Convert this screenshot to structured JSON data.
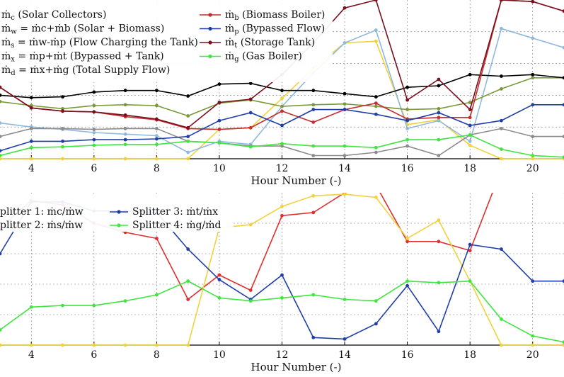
{
  "chart_data": [
    {
      "type": "line",
      "title": "",
      "xlabel": "Hour Number (-)",
      "ylabel": "",
      "xlim": [
        3,
        21
      ],
      "ylim": [
        0,
        1
      ],
      "grid": true,
      "legend_position": "top-left",
      "xticks": [
        4,
        6,
        8,
        10,
        12,
        14,
        16,
        18,
        20
      ],
      "x": [
        3,
        4,
        5,
        6,
        7,
        8,
        9,
        10,
        11,
        12,
        13,
        14,
        15,
        16,
        17,
        18,
        19,
        20,
        21
      ],
      "series": [
        {
          "name": "ṁc (Solar Collectors)",
          "color": "#f2d23c",
          "values": [
            0,
            0,
            0,
            0,
            0,
            0,
            0,
            0.185,
            0.195,
            0.38,
            0.57,
            0.73,
            0.74,
            0.215,
            0.245,
            0.085,
            0,
            0,
            0
          ]
        },
        {
          "name": "ṁw = ṁc+ṁb (Solar + Biomass)",
          "color": "#8fb9e0",
          "values": [
            0.225,
            0.2,
            0.185,
            0.165,
            0.155,
            0.145,
            0.04,
            0.11,
            0.09,
            0.33,
            0.54,
            0.73,
            0.81,
            0.19,
            0.24,
            0.11,
            0.82,
            0.76,
            0.7
          ]
        },
        {
          "name": "ṁs = ṁw-ṁp (Flow Charging the Tank)",
          "color": "#7a9a3a",
          "values": [
            0.36,
            0.335,
            0.315,
            0.335,
            0.34,
            0.335,
            0.27,
            0.35,
            0.37,
            0.33,
            0.34,
            0.345,
            0.33,
            0.31,
            0.315,
            0.355,
            0.44,
            0.51,
            0.51
          ]
        },
        {
          "name": "ṁx = ṁp+ṁt (Bypassed + Tank)",
          "color": "#000000",
          "values": [
            0.4,
            0.385,
            0.39,
            0.42,
            0.43,
            0.43,
            0.395,
            0.47,
            0.475,
            0.43,
            0.43,
            0.41,
            0.39,
            0.45,
            0.46,
            0.53,
            0.52,
            0.53,
            0.51
          ]
        },
        {
          "name": "ṁd = ṁx+ṁg (Total Supply Flow)",
          "color": "#8b8b8b",
          "values": [
            0.14,
            0.19,
            0.19,
            0.185,
            0.19,
            0.19,
            0.11,
            0.1,
            0.08,
            0.08,
            0.02,
            0.02,
            0.04,
            0.08,
            0.02,
            0.15,
            0.19,
            0.14,
            0.14
          ]
        },
        {
          "name": "ṁb (Biomass Boiler)",
          "color": "#c62d2d",
          "values": [
            0.45,
            0.32,
            0.3,
            0.295,
            0.265,
            0.245,
            0.19,
            0.185,
            0.195,
            0.3,
            0.23,
            0.31,
            0.35,
            0.25,
            0.26,
            0.26,
            1.0,
            0.99,
            0.93
          ]
        },
        {
          "name": "ṁp (Bypassed Flow)",
          "color": "#1f3fa8",
          "values": [
            0.05,
            0.11,
            0.11,
            0.12,
            0.12,
            0.125,
            0.14,
            0.24,
            0.29,
            0.21,
            0.31,
            0.31,
            0.28,
            0.24,
            0.29,
            0.21,
            0.24,
            0.34,
            0.34
          ]
        },
        {
          "name": "ṁt (Storage Tank)",
          "color": "#7a0f1e",
          "values": [
            0.45,
            0.32,
            0.3,
            0.295,
            0.275,
            0.25,
            0.195,
            0.355,
            0.375,
            0.53,
            0.73,
            0.95,
            1.0,
            0.37,
            0.5,
            0.31,
            1.0,
            0.99,
            0.93
          ]
        },
        {
          "name": "ṁg (Gas Boiler)",
          "color": "#3ee63e",
          "values": [
            0.02,
            0.07,
            0.075,
            0.085,
            0.09,
            0.09,
            0.11,
            0.1,
            0.075,
            0.095,
            0.08,
            0.08,
            0.07,
            0.12,
            0.12,
            0.15,
            0.06,
            0.02,
            0.01
          ]
        }
      ]
    },
    {
      "type": "line",
      "title": "",
      "xlabel": "Hour Number (-)",
      "ylabel": "",
      "xlim": [
        3,
        21
      ],
      "ylim": [
        0,
        1
      ],
      "grid": true,
      "legend_position": "top-left",
      "xticks": [
        4,
        6,
        8,
        10,
        12,
        14,
        16,
        18,
        20
      ],
      "x": [
        3,
        4,
        5,
        6,
        7,
        8,
        9,
        10,
        11,
        12,
        13,
        14,
        15,
        16,
        17,
        18,
        19,
        20,
        21
      ],
      "series": [
        {
          "name": "Splitter 1: ṁc/ṁw",
          "color": "#e03030",
          "values": [
            0.77,
            0.95,
            0.92,
            0.8,
            0.74,
            0.7,
            0.3,
            0.46,
            0.36,
            0.85,
            0.87,
            1.0,
            1.05,
            0.68,
            0.68,
            0.62,
            1.15,
            1.03,
            1.01
          ]
        },
        {
          "name": "Splitter 2: ṁs/ṁw",
          "color": "#f2d23c",
          "values": [
            0,
            0,
            0,
            0,
            0,
            0,
            0,
            0.77,
            0.79,
            0.91,
            0.98,
            0.99,
            0.97,
            0.7,
            0.82,
            0.42,
            0,
            0,
            0
          ]
        },
        {
          "name": "Splitter 3: ṁt/ṁx",
          "color": "#1f3fa8",
          "values": [
            0.6,
            0.94,
            0.94,
            0.88,
            0.88,
            0.87,
            0.63,
            0.43,
            0.3,
            0.46,
            0.05,
            0.04,
            0.14,
            0.39,
            0.09,
            0.66,
            0.63,
            0.42,
            0.42
          ]
        },
        {
          "name": "Splitter 4: ṁg/ṁd",
          "color": "#3ee63e",
          "values": [
            0.1,
            0.25,
            0.26,
            0.26,
            0.29,
            0.33,
            0.42,
            0.31,
            0.29,
            0.31,
            0.33,
            0.3,
            0.29,
            0.42,
            0.41,
            0.42,
            0.17,
            0.06,
            0.02
          ]
        }
      ]
    }
  ],
  "legend_top": {
    "col1": [
      {
        "sym": "ṁ",
        "sub": "c",
        "rest": " (Solar Collectors)"
      },
      {
        "sym": "ṁ",
        "sub": "w",
        "rest": " = ṁc+ṁb (Solar + Biomass)"
      },
      {
        "sym": "ṁ",
        "sub": "s",
        "rest": " = ṁw-ṁp (Flow Charging the Tank)"
      },
      {
        "sym": "ṁ",
        "sub": "x",
        "rest": " = ṁp+ṁt (Bypassed + Tank)"
      },
      {
        "sym": "ṁ",
        "sub": "d",
        "rest": " = ṁx+ṁg (Total Supply Flow)"
      }
    ],
    "col2": [
      {
        "sym": "ṁ",
        "sub": "b",
        "rest": " (Biomass Boiler)"
      },
      {
        "sym": "ṁ",
        "sub": "p",
        "rest": " (Bypassed Flow)"
      },
      {
        "sym": "ṁ",
        "sub": "t",
        "rest": " (Storage Tank)"
      },
      {
        "sym": "ṁ",
        "sub": "g",
        "rest": " (Gas Boiler)"
      }
    ]
  },
  "legend_bottom": [
    "plitter 1:  ṁc/ṁw",
    "plitter 2:  ṁs/ṁw",
    "Splitter 3:  ṁt/ṁx",
    "Splitter 4:  ṁg/ṁd"
  ]
}
